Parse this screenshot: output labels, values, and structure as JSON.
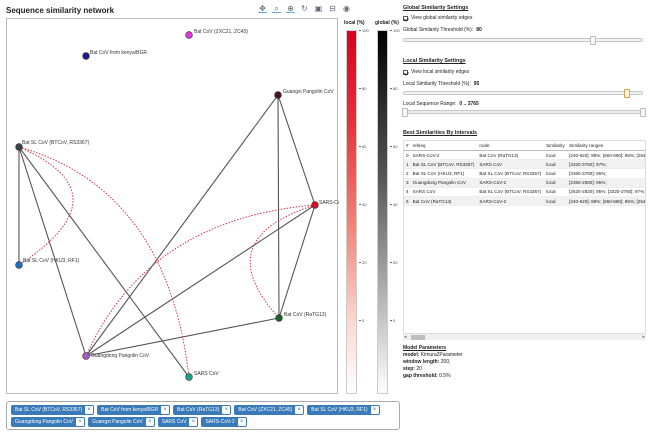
{
  "page_title": "Sequence similarity network",
  "toolbar": [
    {
      "name": "pan-tool-icon",
      "glyph": "✥"
    },
    {
      "name": "box-zoom-tool-icon",
      "glyph": "⌕"
    },
    {
      "name": "wheel-zoom-tool-icon",
      "glyph": "⊕"
    },
    {
      "name": "reset-tool-icon",
      "glyph": "↻"
    },
    {
      "name": "save-tool-icon",
      "glyph": "▣"
    },
    {
      "name": "hover-tool-icon",
      "glyph": "⊟"
    },
    {
      "name": "bokeh-logo-icon",
      "glyph": "◉"
    }
  ],
  "colorbars": {
    "local_label": "local (%)",
    "global_label": "global (%)",
    "ticks": [
      "100",
      "80",
      "60",
      "40",
      "20",
      "0"
    ]
  },
  "graph": {
    "nodes": [
      {
        "id": "zxc21",
        "label": "Bat CoV (ZXC21, ZC45)",
        "color": "#e035d8"
      },
      {
        "id": "kenya",
        "label": "Bat CoV from kenya/BGR",
        "color": "#1a1a8c"
      },
      {
        "id": "guangxi",
        "label": "Guangxi Pangolin CoV",
        "color": "#4a1030"
      },
      {
        "id": "btcov",
        "label": "Bat SL CoV (BTCoV, RS3367)",
        "color": "#3a4048"
      },
      {
        "id": "sars2",
        "label": "SARS-CoV-2",
        "color": "#d4102a"
      },
      {
        "id": "hku3",
        "label": "Bat SL CoV (HKU3, RF1)",
        "color": "#1c6fc4"
      },
      {
        "id": "ratg13",
        "label": "Bat CoV (RaTG13)",
        "color": "#1e6030"
      },
      {
        "id": "guangdong",
        "label": "Guangdong Pangolin CoV",
        "color": "#a45cc8"
      },
      {
        "id": "sars",
        "label": "SARS CoV",
        "color": "#1aa088"
      }
    ]
  },
  "chips": [
    "Bat SL CoV (BTCoV, RS3367)",
    "Bat CoV from kenya/BGR",
    "Bat CoV (RaTG13)",
    "Bat CoV (ZXC21, ZC45)",
    "Bat SL CoV (HKU3, RF1)",
    "Guangdong Pangolin CoV",
    "Guangxi Pangolin CoV",
    "SARS CoV",
    "SARS-CoV-2"
  ],
  "chip_remove": "×",
  "global": {
    "heading": "Global Similarity Settings",
    "checkbox_label": "View global similarity edges",
    "threshold_label": "Global Similarity Threshold (%):",
    "threshold_value": "80",
    "threshold": 0.8
  },
  "local": {
    "heading": "Local Similarity Settings",
    "checkbox_label": "View local similarity edges",
    "threshold_label": "Local Similarity Threshold (%):",
    "threshold_value": "95",
    "threshold": 0.95,
    "range_label": "Local Sequence Range:",
    "range_value": "0 .. 3765"
  },
  "table": {
    "heading": "Best Similarities By Intervals",
    "columns": [
      "#",
      "refseq",
      "node",
      "Similarity",
      "Similarity ranges"
    ],
    "rows": [
      [
        "0",
        "SARS-CoV-2",
        "Bat CoV (RaTG13)",
        "local",
        "[240-620]: 98%; [660-860]: 96%; [2540-2860]: 98%; [2900-3300]"
      ],
      [
        "1",
        "Bat SL CoV (BTCoV, RS3367)",
        "SARS CoV",
        "local",
        "[3320-3760]: 97%;"
      ],
      [
        "2",
        "Bat SL CoV (HKU3, RF1)",
        "Bat SL CoV (BTCoV, RS3367)",
        "local",
        "[3360-3760]: 95%;"
      ],
      [
        "3",
        "Guangdong Pangolin CoV",
        "SARS-CoV-2",
        "local",
        "[2360-2560]: 95%;"
      ],
      [
        "4",
        "SARS CoV",
        "Bat SL CoV (BTCoV, RS3367)",
        "local",
        "[2620-2820]: 95%; [3320-3760]: 97%;"
      ],
      [
        "5",
        "Bat CoV (RaTG13)",
        "SARS-CoV-2",
        "local",
        "[240-620]: 98%; [660-880]: 95%; [2540-2860]: 98%; [2900-3300]"
      ]
    ]
  },
  "params": {
    "heading": "Model Parameters",
    "items": [
      {
        "key": "model:",
        "value": "Kimura2Parameter"
      },
      {
        "key": "window length:",
        "value": "200,"
      },
      {
        "key": "step:",
        "value": "20"
      },
      {
        "key": "gap threshold:",
        "value": "0.5%"
      }
    ]
  }
}
